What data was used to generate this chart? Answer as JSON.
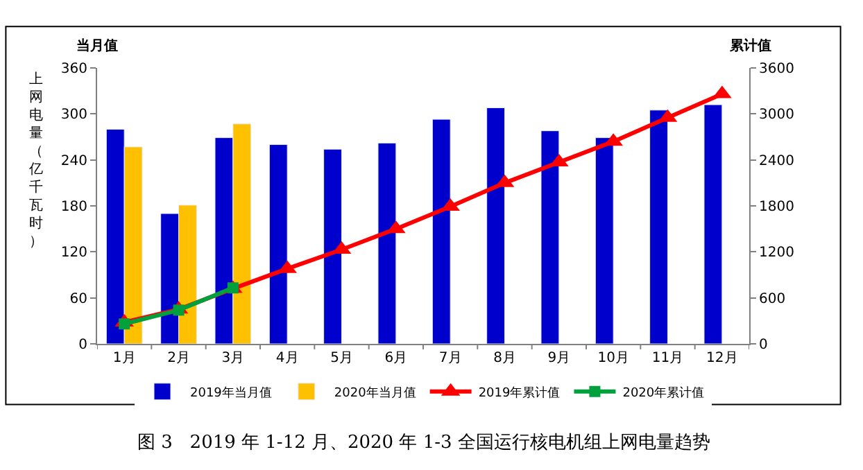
{
  "chart_data": {
    "type": "bar",
    "categories": [
      "1月",
      "2月",
      "3月",
      "4月",
      "5月",
      "6月",
      "7月",
      "8月",
      "9月",
      "10月",
      "11月",
      "12月"
    ],
    "series": [
      {
        "name": "2019年当月值",
        "color": "#0000cc",
        "values": [
          280,
          170,
          269,
          260,
          254,
          262,
          293,
          308,
          278,
          269,
          305,
          312
        ]
      },
      {
        "name": "2020年当月值",
        "color": "#ffc000",
        "values": [
          257,
          181,
          287,
          null,
          null,
          null,
          null,
          null,
          null,
          null,
          null,
          null
        ]
      },
      {
        "name": "2019年累计值",
        "type": "line",
        "axis": "y2",
        "marker": "triangle",
        "color": "#ff0000",
        "values": [
          280,
          450,
          720,
          980,
          1230,
          1500,
          1790,
          2100,
          2370,
          2640,
          2950,
          3260
        ]
      },
      {
        "name": "2020年累计值",
        "type": "line",
        "axis": "y2",
        "marker": "square",
        "color": "#00a03c",
        "values": [
          260,
          440,
          730,
          null,
          null,
          null,
          null,
          null,
          null,
          null,
          null,
          null
        ]
      }
    ],
    "ylabel": "上网电量（亿千瓦时）",
    "y2label": "累计值",
    "ylim": [
      0,
      360
    ],
    "yticks": [
      0,
      60,
      120,
      180,
      240,
      300,
      360
    ],
    "y2lim": [
      0,
      3600
    ],
    "y2ticks": [
      0,
      600,
      1200,
      1800,
      2400,
      3000,
      3600
    ],
    "annotations": [
      "当月值",
      "图 3   2019 年 1-12 月、2020 年 1-3 全国运行核电机组上网电量趋势"
    ],
    "legend": "bottom"
  }
}
